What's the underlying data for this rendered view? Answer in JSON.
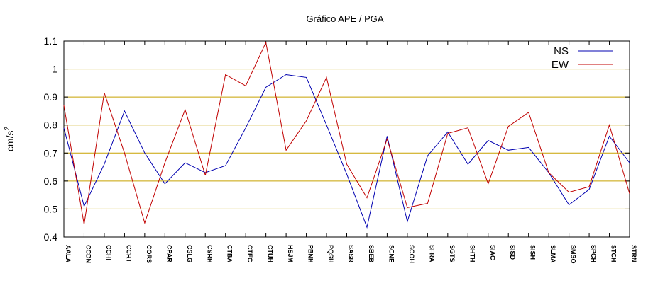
{
  "chart_data": {
    "type": "line",
    "title": "Gráfico  APE / PGA",
    "ylabel_base": "cm/s",
    "ylabel_exp": "2",
    "xlabel": "",
    "ylim": [
      0.4,
      1.1
    ],
    "yticks": [
      "0.4",
      "0.5",
      "0.6",
      "0.7",
      "0.8",
      "0.9",
      "1",
      "1.1"
    ],
    "grid": "horizontal",
    "legend_position": "top-right",
    "categories": [
      "AALA",
      "CCDN",
      "CCHI",
      "CCRT",
      "CORS",
      "CPAR",
      "CSLG",
      "CSRH",
      "CTBA",
      "CTEC",
      "CTUH",
      "HSJM",
      "PBNH",
      "PQSH",
      "SASR",
      "SBEB",
      "SCNE",
      "SCOH",
      "SFRA",
      "SGTS",
      "SHTH",
      "SIAC",
      "SISD",
      "SISH",
      "SLMA",
      "SMSO",
      "SPCH",
      "STCH",
      "STRN"
    ],
    "series": [
      {
        "name": "NS",
        "color": "#0000b0",
        "values": [
          0.79,
          0.51,
          0.66,
          0.85,
          0.7,
          0.59,
          0.665,
          0.63,
          0.655,
          0.79,
          0.935,
          0.98,
          0.97,
          0.8,
          0.625,
          0.435,
          0.76,
          0.455,
          0.69,
          0.775,
          0.66,
          0.745,
          0.71,
          0.72,
          0.63,
          0.515,
          0.57,
          0.76,
          0.665
        ]
      },
      {
        "name": "EW",
        "color": "#c00000",
        "values": [
          0.87,
          0.445,
          0.915,
          0.7,
          0.45,
          0.665,
          0.855,
          0.62,
          0.98,
          0.94,
          1.095,
          0.71,
          0.815,
          0.97,
          0.66,
          0.54,
          0.75,
          0.505,
          0.52,
          0.77,
          0.79,
          0.59,
          0.795,
          0.845,
          0.63,
          0.56,
          0.58,
          0.8,
          0.555
        ]
      }
    ]
  }
}
